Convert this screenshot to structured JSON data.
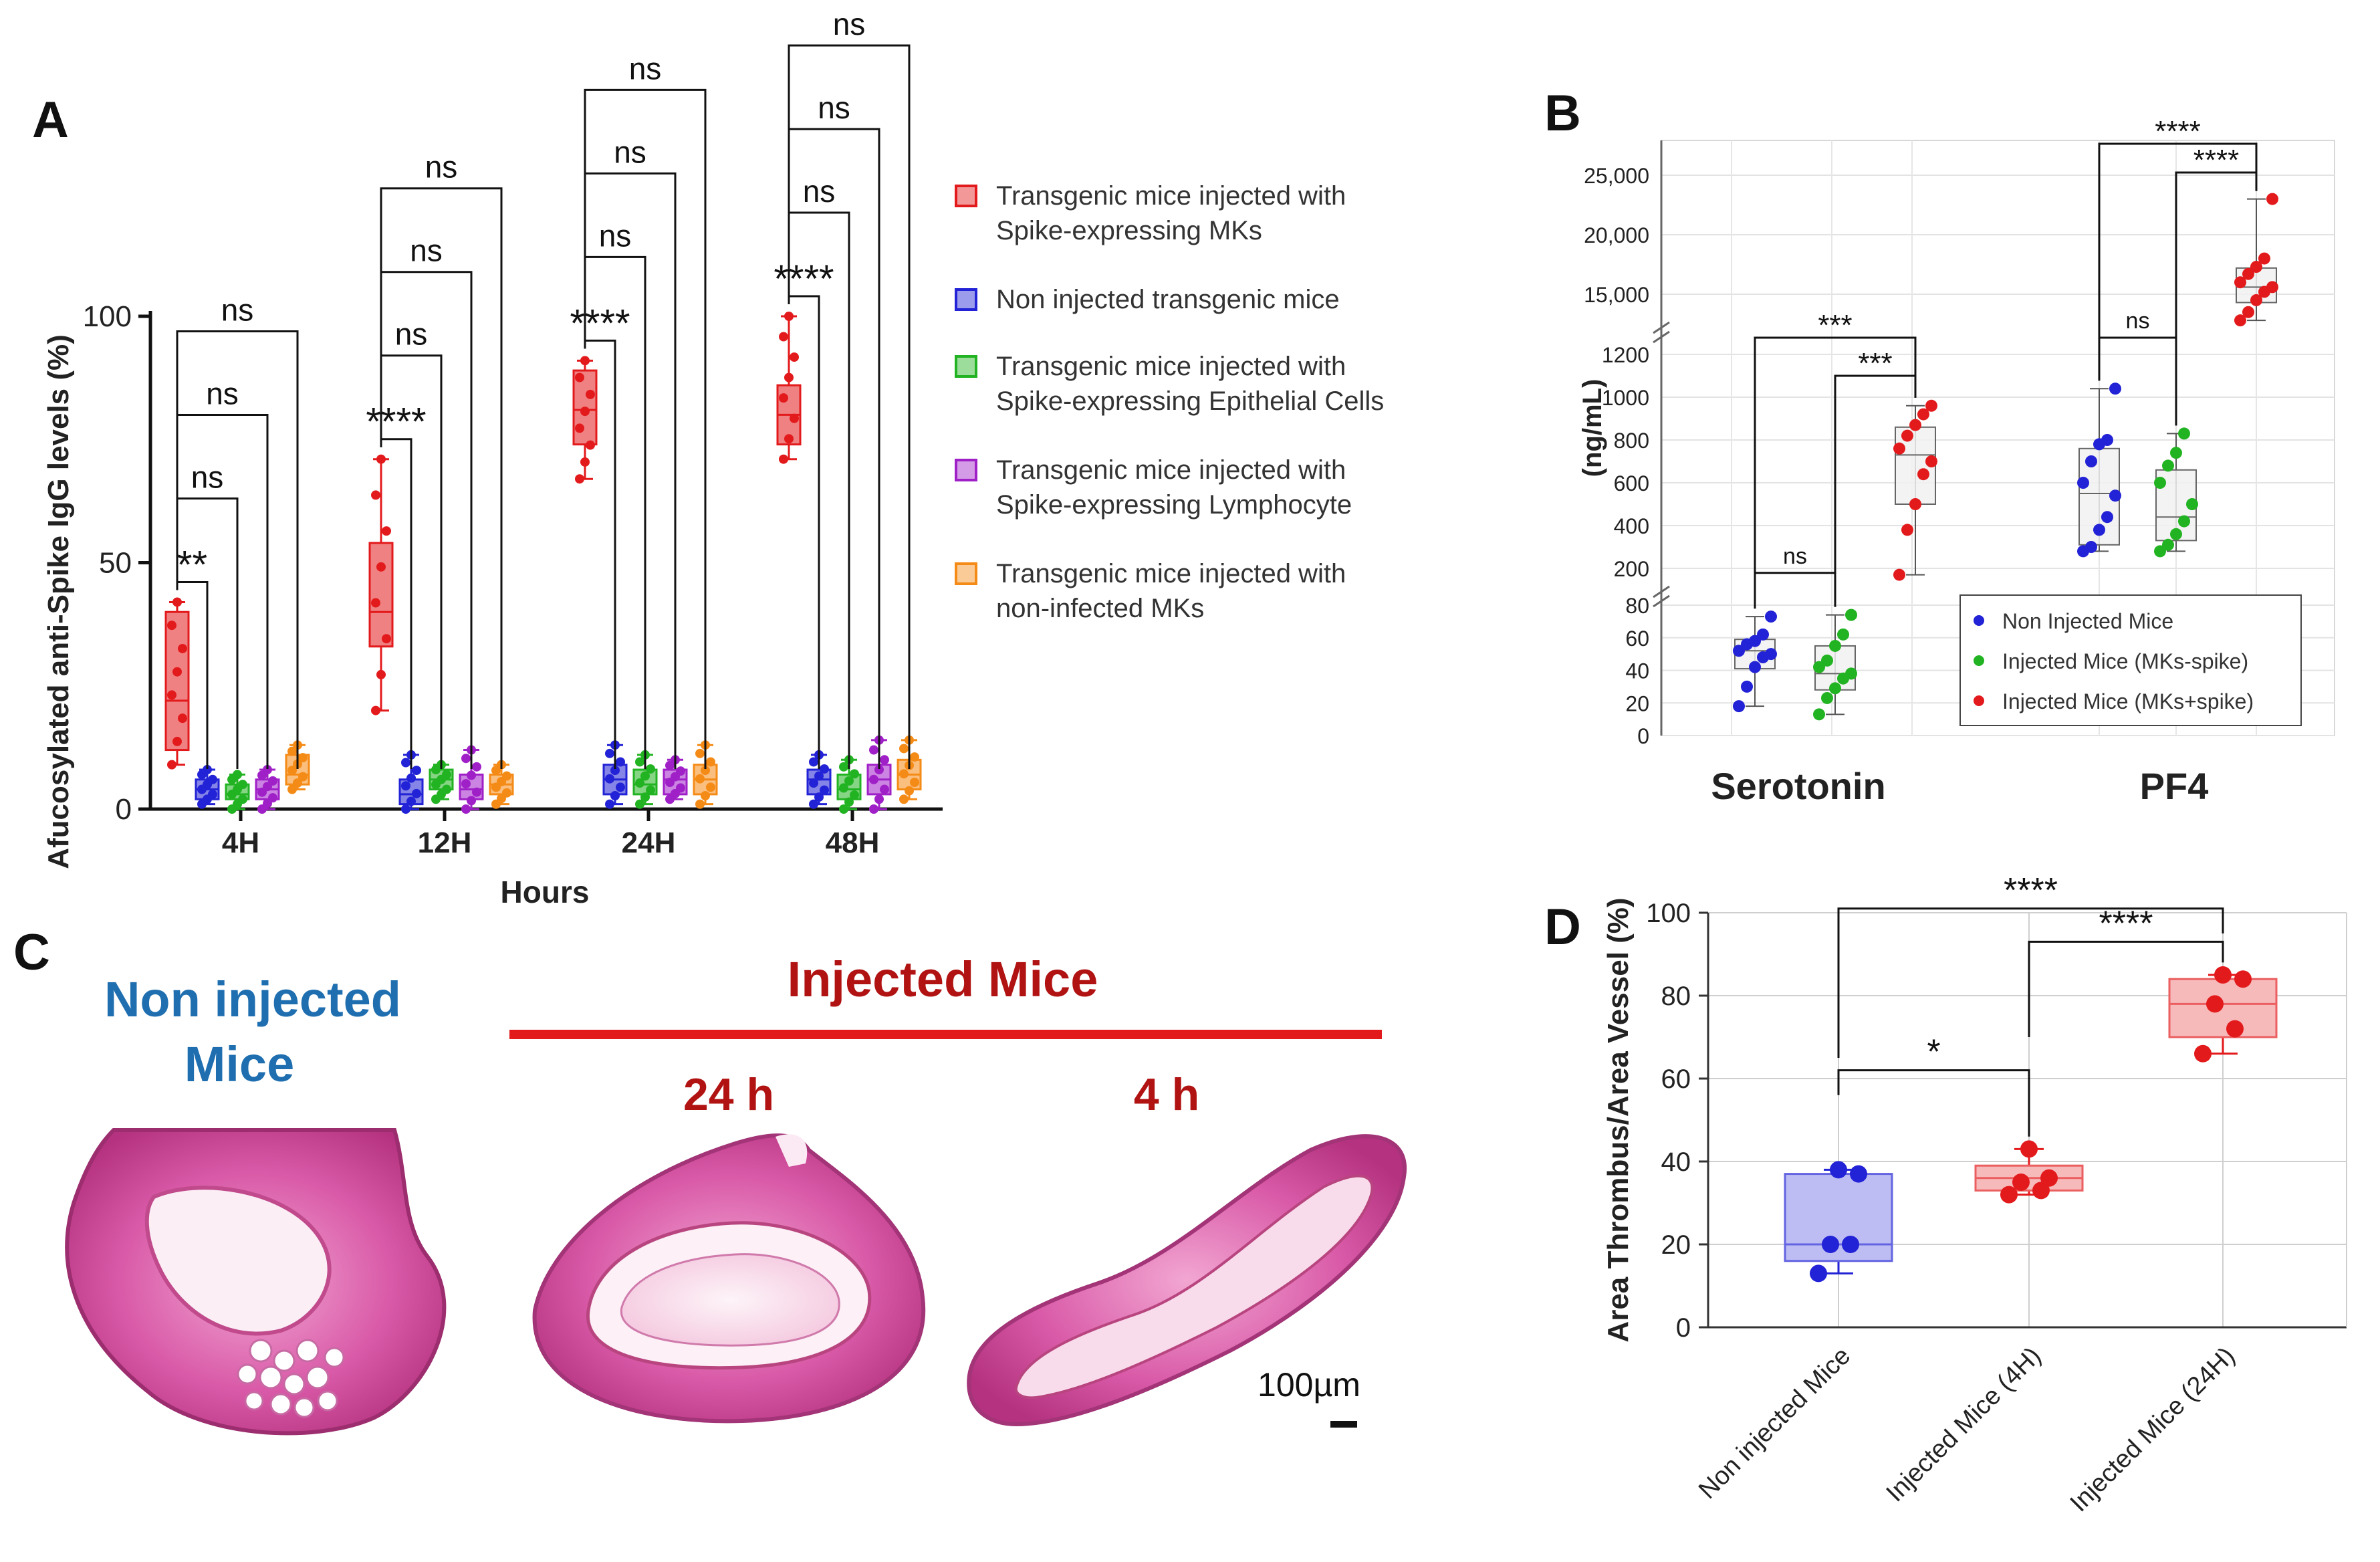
{
  "colors": {
    "red": "#e31a1c",
    "blue": "#2222d6",
    "green": "#22b322",
    "purple": "#a020c8",
    "orange": "#f58b17",
    "dark_red": "#b11212",
    "steel_blue": "#1f6fb0"
  },
  "chart_data": [
    {
      "panel": "A",
      "type": "box",
      "ylabel": "Afucosylated anti-Spike IgG levels (%)",
      "xlabel": "Hours",
      "categories": [
        "4H",
        "12H",
        "24H",
        "48H"
      ],
      "yticks": [
        "0",
        "50",
        "100"
      ],
      "ylim": [
        0,
        100
      ],
      "legend": [
        {
          "lines": [
            "Transgenic mice injected with",
            "Spike-expressing MKs"
          ],
          "color": "red"
        },
        {
          "lines": [
            "Non injected transgenic mice"
          ],
          "color": "blue"
        },
        {
          "lines": [
            "Transgenic mice injected with",
            "Spike-expressing Epithelial Cells"
          ],
          "color": "green"
        },
        {
          "lines": [
            "Transgenic mice injected with",
            "Spike-expressing Lymphocyte"
          ],
          "color": "purple"
        },
        {
          "lines": [
            "Transgenic mice injected with",
            "non-infected MKs"
          ],
          "color": "orange"
        }
      ],
      "series": [
        {
          "group": "4H",
          "name": "Spike-expressing MKs",
          "min": 9,
          "q1": 12,
          "median": 22,
          "q3": 40,
          "max": 42
        },
        {
          "group": "4H",
          "name": "Non injected",
          "min": 1,
          "q1": 2,
          "median": 4,
          "q3": 6,
          "max": 8
        },
        {
          "group": "4H",
          "name": "Epithelial Cells",
          "min": 0,
          "q1": 2,
          "median": 3,
          "q3": 5,
          "max": 7
        },
        {
          "group": "4H",
          "name": "Lymphocyte",
          "min": 0,
          "q1": 2,
          "median": 4,
          "q3": 6,
          "max": 8
        },
        {
          "group": "4H",
          "name": "non-infected MKs",
          "min": 4,
          "q1": 5,
          "median": 7,
          "q3": 11,
          "max": 13
        },
        {
          "group": "12H",
          "name": "Spike-expressing MKs",
          "min": 20,
          "q1": 33,
          "median": 40,
          "q3": 54,
          "max": 71
        },
        {
          "group": "12H",
          "name": "Non injected",
          "min": 0,
          "q1": 1,
          "median": 3,
          "q3": 6,
          "max": 11
        },
        {
          "group": "12H",
          "name": "Epithelial Cells",
          "min": 2,
          "q1": 4,
          "median": 6,
          "q3": 8,
          "max": 9
        },
        {
          "group": "12H",
          "name": "Lymphocyte",
          "min": 0,
          "q1": 2,
          "median": 4,
          "q3": 7,
          "max": 12
        },
        {
          "group": "12H",
          "name": "non-infected MKs",
          "min": 1,
          "q1": 3,
          "median": 5,
          "q3": 7,
          "max": 9
        },
        {
          "group": "24H",
          "name": "Spike-expressing MKs",
          "min": 67,
          "q1": 74,
          "median": 81,
          "q3": 89,
          "max": 91
        },
        {
          "group": "24H",
          "name": "Non injected",
          "min": 1,
          "q1": 3,
          "median": 6,
          "q3": 9,
          "max": 13
        },
        {
          "group": "24H",
          "name": "Epithelial Cells",
          "min": 1,
          "q1": 3,
          "median": 5,
          "q3": 8,
          "max": 11
        },
        {
          "group": "24H",
          "name": "Lymphocyte",
          "min": 2,
          "q1": 3,
          "median": 6,
          "q3": 8,
          "max": 10
        },
        {
          "group": "24H",
          "name": "non-infected MKs",
          "min": 1,
          "q1": 3,
          "median": 6,
          "q3": 9,
          "max": 13
        },
        {
          "group": "48H",
          "name": "Spike-expressing MKs",
          "min": 71,
          "q1": 74,
          "median": 80,
          "q3": 86,
          "max": 100
        },
        {
          "group": "48H",
          "name": "Non injected",
          "min": 1,
          "q1": 3,
          "median": 6,
          "q3": 8,
          "max": 11
        },
        {
          "group": "48H",
          "name": "Epithelial Cells",
          "min": 0,
          "q1": 2,
          "median": 4,
          "q3": 7,
          "max": 10
        },
        {
          "group": "48H",
          "name": "Lymphocyte",
          "min": 0,
          "q1": 3,
          "median": 6,
          "q3": 9,
          "max": 14
        },
        {
          "group": "48H",
          "name": "non-infected MKs",
          "min": 2,
          "q1": 4,
          "median": 7,
          "q3": 10,
          "max": 14
        }
      ],
      "comparisons": [
        {
          "group": "4H",
          "with": "Non injected",
          "label": "**"
        },
        {
          "group": "4H",
          "with": "Epithelial Cells",
          "label": "ns"
        },
        {
          "group": "4H",
          "with": "Lymphocyte",
          "label": "ns"
        },
        {
          "group": "4H",
          "with": "non-infected MKs",
          "label": "ns"
        },
        {
          "group": "12H",
          "with": "Non injected",
          "label": "****"
        },
        {
          "group": "12H",
          "with": "Epithelial Cells",
          "label": "ns"
        },
        {
          "group": "12H",
          "with": "Lymphocyte",
          "label": "ns"
        },
        {
          "group": "12H",
          "with": "non-infected MKs",
          "label": "ns"
        },
        {
          "group": "24H",
          "with": "Non injected",
          "label": "****"
        },
        {
          "group": "24H",
          "with": "Epithelial Cells",
          "label": "ns"
        },
        {
          "group": "24H",
          "with": "Lymphocyte",
          "label": "ns"
        },
        {
          "group": "24H",
          "with": "non-infected MKs",
          "label": "ns"
        },
        {
          "group": "48H",
          "with": "Non injected",
          "label": "****"
        },
        {
          "group": "48H",
          "with": "Epithelial Cells",
          "label": "ns"
        },
        {
          "group": "48H",
          "with": "Lymphocyte",
          "label": "ns"
        },
        {
          "group": "48H",
          "with": "non-infected MKs",
          "label": "ns"
        }
      ]
    },
    {
      "panel": "B",
      "type": "box",
      "ylabel": "(ng/mL)",
      "categories": [
        "Serotonin",
        "PF4"
      ],
      "yticks_low": [
        "0",
        "20",
        "40",
        "60",
        "80"
      ],
      "yticks_mid": [
        "200",
        "400",
        "600",
        "800",
        "1000",
        "1200"
      ],
      "yticks_high": [
        "15,000",
        "20,000",
        "25,000"
      ],
      "legend": [
        {
          "label": "Non Injected Mice",
          "color": "blue"
        },
        {
          "label": "Injected Mice (MKs-spike)",
          "color": "green"
        },
        {
          "label": "Injected Mice (MKs+spike)",
          "color": "red"
        }
      ],
      "series": [
        {
          "group": "Serotonin",
          "name": "Non Injected Mice",
          "min": 18,
          "q1": 41,
          "median": 52,
          "q3": 59,
          "max": 73,
          "points": [
            18,
            30,
            42,
            48,
            50,
            52,
            56,
            58,
            62,
            73
          ]
        },
        {
          "group": "Serotonin",
          "name": "Injected Mice (MKs-spike)",
          "min": 13,
          "q1": 28,
          "median": 38,
          "q3": 55,
          "max": 74,
          "points": [
            13,
            23,
            29,
            35,
            38,
            42,
            46,
            55,
            62,
            74
          ]
        },
        {
          "group": "Serotonin",
          "name": "Injected Mice (MKs+spike)",
          "min": 170,
          "q1": 500,
          "median": 730,
          "q3": 860,
          "max": 960,
          "points": [
            170,
            380,
            500,
            640,
            700,
            760,
            820,
            870,
            920,
            960
          ]
        },
        {
          "group": "PF4",
          "name": "Non Injected Mice",
          "min": 280,
          "q1": 310,
          "median": 550,
          "q3": 760,
          "max": 1040,
          "points": [
            280,
            300,
            380,
            440,
            540,
            600,
            700,
            780,
            800,
            1040
          ]
        },
        {
          "group": "PF4",
          "name": "Injected Mice (MKs-spike)",
          "min": 280,
          "q1": 330,
          "median": 440,
          "q3": 660,
          "max": 830,
          "points": [
            280,
            310,
            360,
            420,
            500,
            600,
            680,
            740,
            830
          ]
        },
        {
          "group": "PF4",
          "name": "Injected Mice (MKs+spike)",
          "min": 12800,
          "q1": 14300,
          "median": 15600,
          "q3": 17200,
          "max": 23000,
          "points": [
            12800,
            13500,
            14500,
            15200,
            15600,
            16000,
            16700,
            17300,
            18000,
            23000
          ]
        }
      ],
      "comparisons": [
        {
          "group": "Serotonin",
          "between": [
            "Non Injected Mice",
            "Injected Mice (MKs-spike)"
          ],
          "label": "ns"
        },
        {
          "group": "Serotonin",
          "between": [
            "Injected Mice (MKs-spike)",
            "Injected Mice (MKs+spike)"
          ],
          "label": "***"
        },
        {
          "group": "Serotonin",
          "between": [
            "Non Injected Mice",
            "Injected Mice (MKs+spike)"
          ],
          "label": "***"
        },
        {
          "group": "PF4",
          "between": [
            "Non Injected Mice",
            "Injected Mice (MKs-spike)"
          ],
          "label": "ns"
        },
        {
          "group": "PF4",
          "between": [
            "Injected Mice (MKs-spike)",
            "Injected Mice (MKs+spike)"
          ],
          "label": "****"
        },
        {
          "group": "PF4",
          "between": [
            "Non Injected Mice",
            "Injected Mice (MKs+spike)"
          ],
          "label": "****"
        }
      ]
    },
    {
      "panel": "D",
      "type": "box",
      "ylabel": "Area Thrombus/Area Vessel (%)",
      "categories": [
        "Non injected Mice",
        "Injected Mice (4H)",
        "Injected Mice (24H)"
      ],
      "yticks": [
        "0",
        "20",
        "40",
        "60",
        "80",
        "100"
      ],
      "ylim": [
        0,
        100
      ],
      "series": [
        {
          "name": "Non injected Mice",
          "color": "blue",
          "min": 13,
          "q1": 16,
          "median": 20,
          "q3": 37,
          "max": 38,
          "points": [
            13,
            20,
            20,
            37,
            38
          ]
        },
        {
          "name": "Injected Mice (4H)",
          "color": "red",
          "min": 32,
          "q1": 33,
          "median": 36,
          "q3": 39,
          "max": 43,
          "points": [
            32,
            33,
            35,
            36,
            43
          ]
        },
        {
          "name": "Injected Mice (24H)",
          "color": "red",
          "min": 66,
          "q1": 70,
          "median": 78,
          "q3": 84,
          "max": 85,
          "points": [
            66,
            72,
            78,
            84,
            85
          ]
        }
      ],
      "comparisons": [
        {
          "between": [
            "Non injected Mice",
            "Injected Mice (4H)"
          ],
          "label": "*"
        },
        {
          "between": [
            "Injected Mice (4H)",
            "Injected Mice (24H)"
          ],
          "label": "****"
        },
        {
          "between": [
            "Non injected Mice",
            "Injected Mice (24H)"
          ],
          "label": "****"
        }
      ]
    }
  ],
  "panel_labels": {
    "a": "A",
    "b": "B",
    "c": "C",
    "d": "D"
  },
  "panel_c": {
    "non_injected_line1": "Non injected",
    "non_injected_line2": "Mice",
    "injected_title": "Injected Mice",
    "time_24h": "24 h",
    "time_4h": "4 h",
    "scale_bar": "100µm"
  }
}
